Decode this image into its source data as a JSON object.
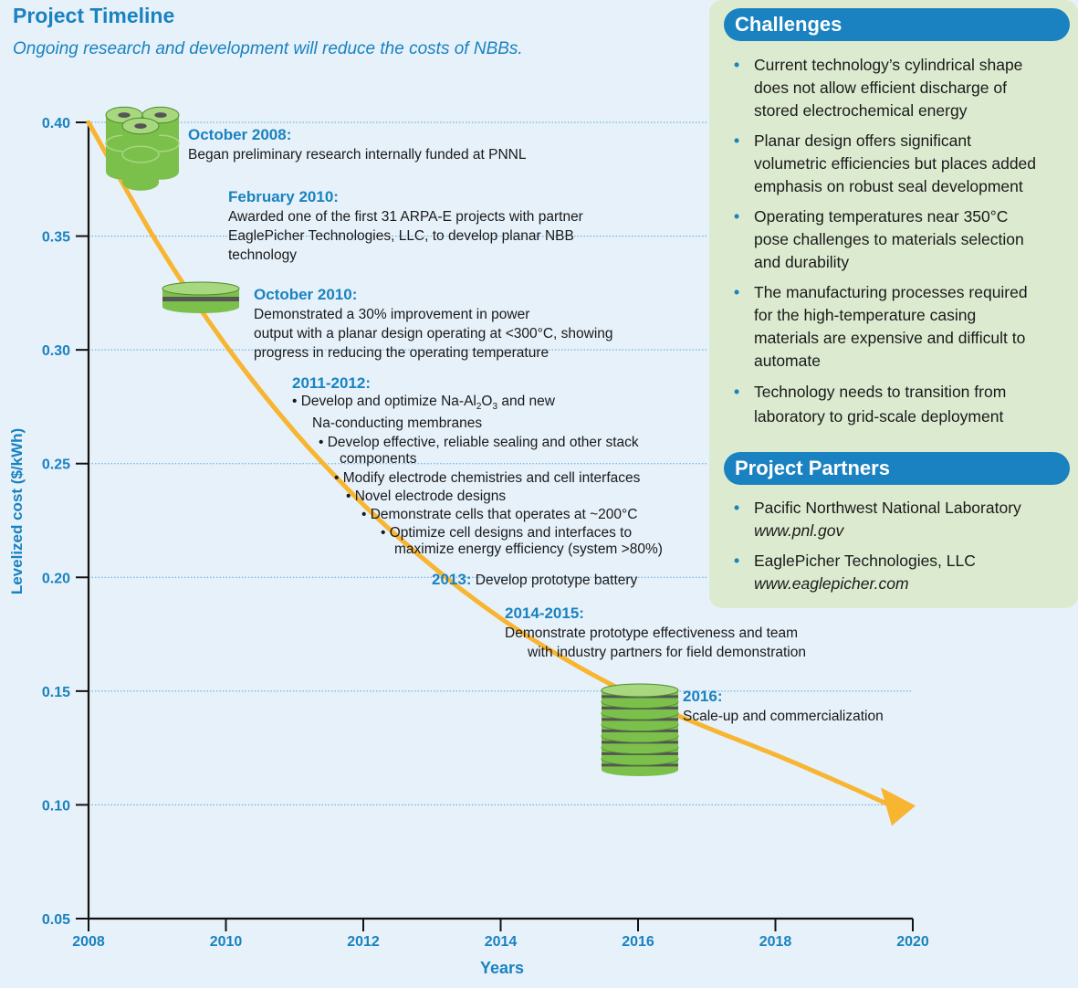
{
  "header": {
    "title": "Project Timeline",
    "subtitle": "Ongoing research and development will reduce the costs of NBBs."
  },
  "colors": {
    "accent": "#1a82c0",
    "curve": "#f7b531",
    "panel": "#dcebd0",
    "background": "#e6f1fa",
    "battery": "#7cc04c"
  },
  "chart_data": {
    "type": "line",
    "xlabel": "Years",
    "ylabel": "Levelized cost ($/kWh)",
    "xlim": [
      2008,
      2020
    ],
    "ylim": [
      0.05,
      0.4
    ],
    "x_ticks": [
      "2008",
      "2010",
      "2012",
      "2014",
      "2016",
      "2018",
      "2020"
    ],
    "y_ticks": [
      "0.05",
      "0.10",
      "0.15",
      "0.20",
      "0.25",
      "0.30",
      "0.35",
      "0.40"
    ],
    "grid": "dotted horizontal",
    "series": [
      {
        "x": [
          2008,
          2009,
          2010,
          2011,
          2012,
          2013,
          2014,
          2015,
          2016,
          2017,
          2018,
          2019,
          2019.8
        ],
        "values": [
          0.4,
          0.347,
          0.302,
          0.264,
          0.232,
          0.205,
          0.182,
          0.163,
          0.147,
          0.134,
          0.122,
          0.109,
          0.098
        ]
      }
    ]
  },
  "timeline": {
    "oct2008": {
      "heading": "October 2008:",
      "lines": [
        "Began preliminary research internally funded at PNNL"
      ]
    },
    "feb2010": {
      "heading": "February 2010:",
      "lines": [
        "Awarded one of the first 31 ARPA-E projects with partner",
        "EaglePicher Technologies, LLC, to develop planar NBB",
        "technology"
      ]
    },
    "oct2010": {
      "heading": "October 2010:",
      "lines": [
        "Demonstrated a 30% improvement in power",
        "output with a planar design operating at <300°C, showing",
        "progress in reducing the operating temperature"
      ]
    },
    "y2011": {
      "heading": "2011-2012:",
      "bullets": [
        {
          "pre": "• Develop and optimize Na-Al",
          "sub1": "2",
          "mid": "O",
          "sub2": "3",
          "post": " and new",
          "cont": "Na-conducting membranes"
        },
        {
          "text": "• Develop effective, reliable sealing and other stack",
          "cont": "components"
        },
        {
          "text": "• Modify electrode chemistries and cell interfaces"
        },
        {
          "text": "• Novel electrode designs"
        },
        {
          "text": "• Demonstrate cells that operates at ~200°C"
        },
        {
          "text": "• Optimize cell designs and interfaces to",
          "cont": "maximize energy efficiency (system >80%)"
        }
      ]
    },
    "y2013": {
      "heading": "2013:",
      "text": "Develop prototype battery"
    },
    "y2014": {
      "heading": "2014-2015:",
      "lines": [
        "Demonstrate prototype effectiveness and team",
        "with industry partners for field demonstration"
      ]
    },
    "y2016": {
      "heading": "2016:",
      "lines": [
        "Scale-up and commercialization"
      ]
    }
  },
  "challenges": {
    "title": "Challenges",
    "items": [
      [
        "Current technology’s cylindrical shape",
        "does not allow efficient discharge of",
        "stored electrochemical energy"
      ],
      [
        "Planar design offers significant",
        "volumetric efficiencies but places added",
        "emphasis on robust seal development"
      ],
      [
        "Operating temperatures near 350°C",
        "pose challenges to materials selection",
        "and durability"
      ],
      [
        "The manufacturing processes required",
        "for the high-temperature casing",
        "materials are expensive and difficult to",
        "automate"
      ],
      [
        "Technology needs to transition from",
        "laboratory to grid-scale deployment"
      ]
    ]
  },
  "partners": {
    "title": "Project Partners",
    "items": [
      {
        "name": "Pacific Northwest National Laboratory",
        "url": "www.pnl.gov"
      },
      {
        "name": "EaglePicher Technologies, LLC",
        "url": "www.eaglepicher.com"
      }
    ]
  }
}
